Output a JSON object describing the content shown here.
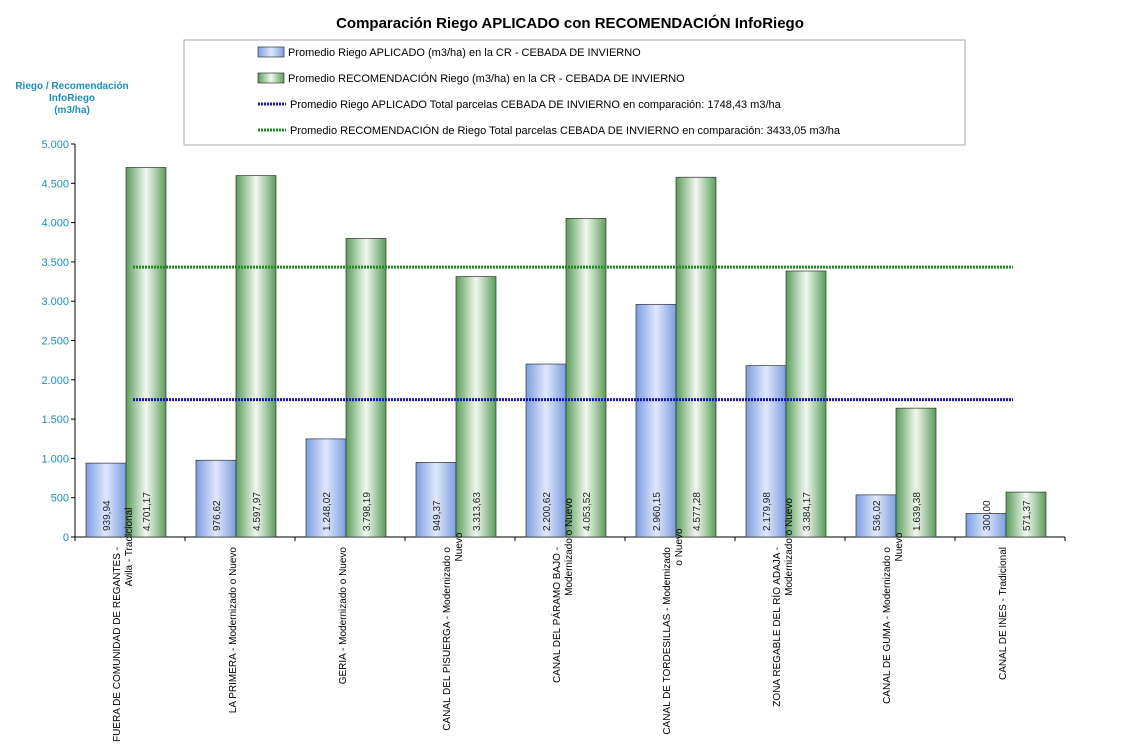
{
  "chart_data": {
    "type": "bar",
    "title": "Comparación Riego APLICADO con RECOMENDACIÓN InfoRiego",
    "ylabel_lines": [
      "Riego / Recomendación",
      "InfoRiego",
      "(m3/ha)"
    ],
    "categories": [
      "FUERA DE COMUNIDAD DE REGANTES - Avila - Tradicional",
      "LA PRIMERA - Modernizado o Nuevo",
      "GERIA - Modernizado o Nuevo",
      "CANAL DEL PISUERGA - Modernizado o Nuevo",
      "CANAL DEL PÁRAMO BAJO - Modernizado o Nuevo",
      "CANAL DE TORDESILLAS - Modernizado o Nuevo",
      "ZONA REGABLE DEL RÍO ADAJA - Modernizado o Nuevo",
      "CANAL DE GUMA - Modernizado o Nuevo",
      "CANAL DE INES - Tradicional"
    ],
    "series": [
      {
        "name": "Promedio Riego APLICADO (m3/ha) en la CR - CEBADA DE INVIERNO",
        "color": "#7f9fe0",
        "values": [
          939.94,
          976.62,
          1248.02,
          949.37,
          2200.62,
          2960.15,
          2179.98,
          536.02,
          300.0
        ],
        "value_labels": [
          "939,94",
          "976,62",
          "1.248,02",
          "949,37",
          "2.200,62",
          "2.960,15",
          "2.179,98",
          "536,02",
          "300,00"
        ]
      },
      {
        "name": "Promedio RECOMENDACIÓN Riego (m3/ha) en la CR - CEBADA DE INVIERNO",
        "color": "#5aa05a",
        "values": [
          4701.17,
          4597.97,
          3798.19,
          3313.63,
          4053.52,
          4577.28,
          3384.17,
          1639.38,
          571.37
        ],
        "value_labels": [
          "4.701,17",
          "4.597,97",
          "3.798,19",
          "3.313,63",
          "4.053,52",
          "4.577,28",
          "3.384,17",
          "1.639,38",
          "571,37"
        ]
      }
    ],
    "reference_lines": [
      {
        "name": "Promedio Riego APLICADO Total parcelas CEBADA DE INVIERNO en comparación:  1748,43 m3/ha",
        "color": "#1414c8",
        "value": 1748.43
      },
      {
        "name": "Promedio RECOMENDACIÓN de Riego Total parcelas CEBADA DE INVIERNO en comparación: 3433,05 m3/ha",
        "color": "#1e8c1e",
        "value": 3433.05
      }
    ],
    "ylim": [
      0,
      5000
    ],
    "yticks": [
      0,
      500,
      {
        "value": 1000,
        "label": "1.000"
      },
      {
        "value": 1500,
        "label": "1.500"
      },
      {
        "value": 2000,
        "label": "2.000"
      },
      {
        "value": 2500,
        "label": "2.500"
      },
      {
        "value": 3000,
        "label": "3.000"
      },
      {
        "value": 3500,
        "label": "3.500"
      },
      {
        "value": 4000,
        "label": "4.000"
      },
      {
        "value": 4500,
        "label": "4.500"
      },
      {
        "value": 5000,
        "label": "5.000"
      }
    ],
    "grid": false
  }
}
